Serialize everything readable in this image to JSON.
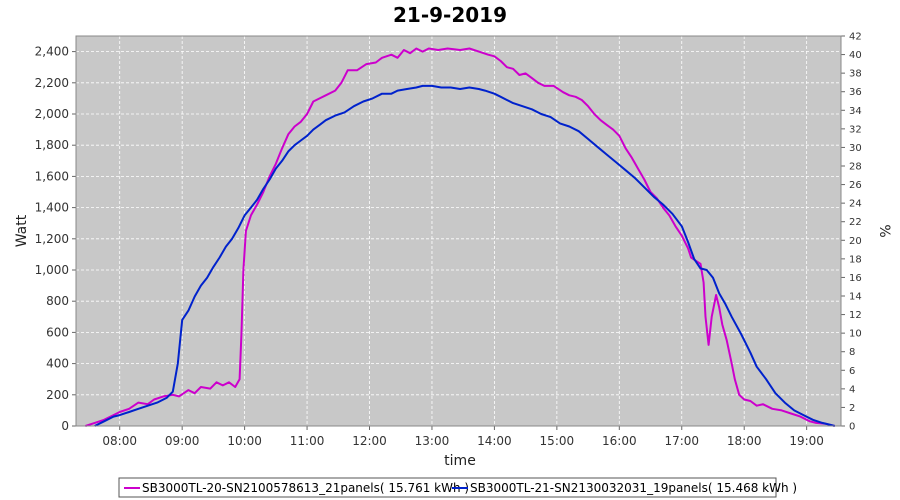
{
  "chart_data": {
    "type": "line",
    "title": "21-9-2019",
    "xlabel": "time",
    "ylabel": "Watt",
    "y2label": "%",
    "xlim": [
      7.3,
      19.55
    ],
    "ylim": [
      0,
      2500
    ],
    "y2lim": [
      0,
      42
    ],
    "x_ticks": [
      8,
      9,
      10,
      11,
      12,
      13,
      14,
      15,
      16,
      17,
      18,
      19
    ],
    "x_tick_labels": [
      "08:00",
      "09:00",
      "10:00",
      "11:00",
      "12:00",
      "13:00",
      "14:00",
      "15:00",
      "16:00",
      "17:00",
      "18:00",
      "19:00"
    ],
    "y_ticks": [
      0,
      200,
      400,
      600,
      800,
      1000,
      1200,
      1400,
      1600,
      1800,
      2000,
      2200,
      2400
    ],
    "y_tick_labels": [
      "0",
      "200",
      "400",
      "600",
      "800",
      "1,000",
      "1,200",
      "1,400",
      "1,600",
      "1,800",
      "2,000",
      "2,200",
      "2,400"
    ],
    "y2_ticks": [
      0,
      2,
      4,
      6,
      8,
      10,
      12,
      14,
      16,
      18,
      20,
      22,
      24,
      26,
      28,
      30,
      32,
      34,
      36,
      38,
      40,
      42
    ],
    "grid": true,
    "legend_position": "bottom",
    "series": [
      {
        "name": "SB3000TL-20-SN2100578613_21panels( 15.761 kWh )",
        "color": "#cc00cc",
        "points": [
          [
            7.45,
            0
          ],
          [
            7.6,
            20
          ],
          [
            7.75,
            40
          ],
          [
            7.9,
            70
          ],
          [
            8.0,
            90
          ],
          [
            8.15,
            110
          ],
          [
            8.3,
            150
          ],
          [
            8.45,
            140
          ],
          [
            8.55,
            170
          ],
          [
            8.7,
            190
          ],
          [
            8.85,
            200
          ],
          [
            8.95,
            190
          ],
          [
            9.1,
            230
          ],
          [
            9.2,
            210
          ],
          [
            9.3,
            250
          ],
          [
            9.45,
            240
          ],
          [
            9.55,
            280
          ],
          [
            9.65,
            260
          ],
          [
            9.75,
            280
          ],
          [
            9.85,
            250
          ],
          [
            9.92,
            300
          ],
          [
            9.95,
            600
          ],
          [
            9.98,
            1000
          ],
          [
            10.02,
            1250
          ],
          [
            10.1,
            1350
          ],
          [
            10.2,
            1420
          ],
          [
            10.3,
            1500
          ],
          [
            10.4,
            1600
          ],
          [
            10.5,
            1680
          ],
          [
            10.6,
            1780
          ],
          [
            10.7,
            1870
          ],
          [
            10.8,
            1920
          ],
          [
            10.9,
            1950
          ],
          [
            11.0,
            2000
          ],
          [
            11.1,
            2080
          ],
          [
            11.2,
            2100
          ],
          [
            11.3,
            2120
          ],
          [
            11.45,
            2150
          ],
          [
            11.55,
            2200
          ],
          [
            11.65,
            2280
          ],
          [
            11.8,
            2280
          ],
          [
            11.95,
            2320
          ],
          [
            12.1,
            2330
          ],
          [
            12.2,
            2360
          ],
          [
            12.35,
            2380
          ],
          [
            12.45,
            2360
          ],
          [
            12.55,
            2410
          ],
          [
            12.65,
            2390
          ],
          [
            12.75,
            2420
          ],
          [
            12.85,
            2400
          ],
          [
            12.95,
            2420
          ],
          [
            13.1,
            2410
          ],
          [
            13.25,
            2420
          ],
          [
            13.45,
            2410
          ],
          [
            13.6,
            2420
          ],
          [
            13.75,
            2400
          ],
          [
            13.9,
            2380
          ],
          [
            14.0,
            2370
          ],
          [
            14.1,
            2340
          ],
          [
            14.2,
            2300
          ],
          [
            14.3,
            2290
          ],
          [
            14.4,
            2250
          ],
          [
            14.5,
            2260
          ],
          [
            14.6,
            2230
          ],
          [
            14.7,
            2200
          ],
          [
            14.8,
            2180
          ],
          [
            14.95,
            2180
          ],
          [
            15.1,
            2140
          ],
          [
            15.2,
            2120
          ],
          [
            15.3,
            2110
          ],
          [
            15.4,
            2090
          ],
          [
            15.5,
            2050
          ],
          [
            15.6,
            2000
          ],
          [
            15.7,
            1960
          ],
          [
            15.8,
            1930
          ],
          [
            15.9,
            1900
          ],
          [
            16.0,
            1860
          ],
          [
            16.1,
            1780
          ],
          [
            16.2,
            1720
          ],
          [
            16.3,
            1650
          ],
          [
            16.4,
            1580
          ],
          [
            16.5,
            1500
          ],
          [
            16.6,
            1460
          ],
          [
            16.7,
            1400
          ],
          [
            16.8,
            1350
          ],
          [
            16.9,
            1280
          ],
          [
            17.0,
            1220
          ],
          [
            17.1,
            1140
          ],
          [
            17.15,
            1080
          ],
          [
            17.22,
            1060
          ],
          [
            17.3,
            1040
          ],
          [
            17.35,
            920
          ],
          [
            17.38,
            700
          ],
          [
            17.43,
            520
          ],
          [
            17.48,
            700
          ],
          [
            17.55,
            840
          ],
          [
            17.6,
            760
          ],
          [
            17.65,
            650
          ],
          [
            17.72,
            550
          ],
          [
            17.8,
            400
          ],
          [
            17.85,
            300
          ],
          [
            17.92,
            200
          ],
          [
            18.0,
            170
          ],
          [
            18.1,
            160
          ],
          [
            18.2,
            130
          ],
          [
            18.3,
            140
          ],
          [
            18.45,
            110
          ],
          [
            18.6,
            100
          ],
          [
            18.75,
            80
          ],
          [
            18.9,
            60
          ],
          [
            19.05,
            30
          ],
          [
            19.15,
            20
          ],
          [
            19.3,
            15
          ],
          [
            19.45,
            0
          ]
        ]
      },
      {
        "name": "SB3000TL-21-SN2130032031_19panels( 15.468 kWh )",
        "color": "#0022cc",
        "points": [
          [
            7.6,
            0
          ],
          [
            7.75,
            30
          ],
          [
            7.9,
            60
          ],
          [
            8.0,
            70
          ],
          [
            8.15,
            90
          ],
          [
            8.3,
            110
          ],
          [
            8.45,
            130
          ],
          [
            8.6,
            150
          ],
          [
            8.75,
            180
          ],
          [
            8.85,
            220
          ],
          [
            8.93,
            400
          ],
          [
            9.0,
            680
          ],
          [
            9.1,
            740
          ],
          [
            9.2,
            830
          ],
          [
            9.3,
            900
          ],
          [
            9.4,
            950
          ],
          [
            9.5,
            1020
          ],
          [
            9.6,
            1080
          ],
          [
            9.7,
            1150
          ],
          [
            9.8,
            1200
          ],
          [
            9.9,
            1270
          ],
          [
            10.0,
            1350
          ],
          [
            10.1,
            1400
          ],
          [
            10.2,
            1450
          ],
          [
            10.3,
            1520
          ],
          [
            10.4,
            1580
          ],
          [
            10.5,
            1650
          ],
          [
            10.6,
            1700
          ],
          [
            10.7,
            1760
          ],
          [
            10.8,
            1800
          ],
          [
            10.9,
            1830
          ],
          [
            11.0,
            1860
          ],
          [
            11.1,
            1900
          ],
          [
            11.2,
            1930
          ],
          [
            11.3,
            1960
          ],
          [
            11.45,
            1990
          ],
          [
            11.6,
            2010
          ],
          [
            11.75,
            2050
          ],
          [
            11.9,
            2080
          ],
          [
            12.05,
            2100
          ],
          [
            12.2,
            2130
          ],
          [
            12.35,
            2130
          ],
          [
            12.45,
            2150
          ],
          [
            12.6,
            2160
          ],
          [
            12.75,
            2170
          ],
          [
            12.85,
            2180
          ],
          [
            13.0,
            2180
          ],
          [
            13.15,
            2170
          ],
          [
            13.3,
            2170
          ],
          [
            13.45,
            2160
          ],
          [
            13.6,
            2170
          ],
          [
            13.75,
            2160
          ],
          [
            13.85,
            2150
          ],
          [
            14.0,
            2130
          ],
          [
            14.1,
            2110
          ],
          [
            14.2,
            2090
          ],
          [
            14.3,
            2070
          ],
          [
            14.45,
            2050
          ],
          [
            14.6,
            2030
          ],
          [
            14.75,
            2000
          ],
          [
            14.9,
            1980
          ],
          [
            15.05,
            1940
          ],
          [
            15.2,
            1920
          ],
          [
            15.35,
            1890
          ],
          [
            15.5,
            1840
          ],
          [
            15.65,
            1790
          ],
          [
            15.8,
            1740
          ],
          [
            15.95,
            1690
          ],
          [
            16.1,
            1640
          ],
          [
            16.25,
            1590
          ],
          [
            16.4,
            1530
          ],
          [
            16.55,
            1470
          ],
          [
            16.7,
            1420
          ],
          [
            16.85,
            1360
          ],
          [
            17.0,
            1280
          ],
          [
            17.1,
            1180
          ],
          [
            17.2,
            1070
          ],
          [
            17.3,
            1010
          ],
          [
            17.4,
            1000
          ],
          [
            17.5,
            950
          ],
          [
            17.6,
            850
          ],
          [
            17.7,
            780
          ],
          [
            17.8,
            700
          ],
          [
            17.95,
            590
          ],
          [
            18.1,
            470
          ],
          [
            18.2,
            380
          ],
          [
            18.35,
            300
          ],
          [
            18.5,
            210
          ],
          [
            18.65,
            150
          ],
          [
            18.8,
            100
          ],
          [
            18.95,
            70
          ],
          [
            19.1,
            40
          ],
          [
            19.25,
            20
          ],
          [
            19.35,
            10
          ],
          [
            19.45,
            0
          ]
        ]
      }
    ]
  }
}
